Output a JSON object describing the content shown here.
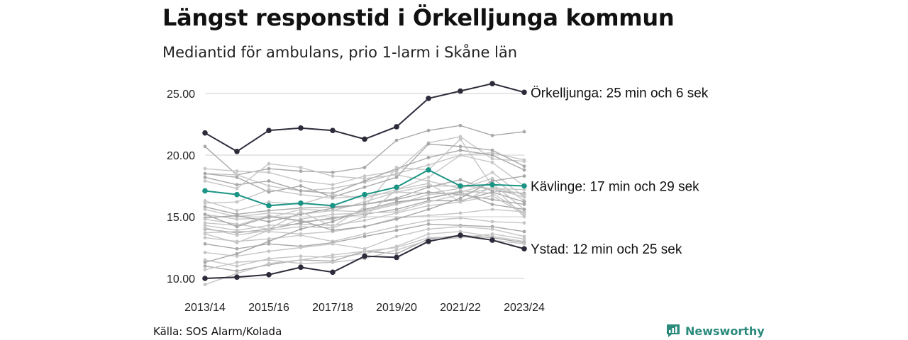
{
  "header": {
    "title": "Längst responstid i Örkelljunga kommun",
    "subtitle": "Mediantid för ambulans, prio 1-larm i Skåne län"
  },
  "footer": {
    "source": "Källa: SOS Alarm/Kolada",
    "brand": "Newsworthy"
  },
  "colors": {
    "highlight_dark": "#2c2b3a",
    "highlight_teal": "#1a9484",
    "background_light": "#c6c6c6",
    "background_mid": "#a8a8a8",
    "gridline": "#dedede",
    "brand": "#2b8a7c"
  },
  "chart_data": {
    "type": "line",
    "x": [
      "2013/14",
      "2014/15",
      "2015/16",
      "2016/17",
      "2017/18",
      "2018/19",
      "2019/20",
      "2020/21",
      "2021/22",
      "2022/23",
      "2023/24"
    ],
    "x_ticks": [
      "2013/14",
      "2015/16",
      "2017/18",
      "2019/20",
      "2021/22",
      "2023/24"
    ],
    "ylim": [
      9.3,
      26.2
    ],
    "y_ticks": [
      10,
      15,
      20,
      25
    ],
    "y_tick_labels": [
      "10.00",
      "15.00",
      "20.00",
      "25.00"
    ],
    "grid": true,
    "highlighted": [
      {
        "name": "Örkelljunga",
        "label": "Örkelljunga: 25 min och 6 sek",
        "color": "#2c2b3a",
        "values": [
          21.8,
          20.3,
          22.0,
          22.2,
          22.0,
          21.3,
          22.3,
          24.6,
          25.2,
          25.8,
          25.1
        ]
      },
      {
        "name": "Kävlinge",
        "label": "Kävlinge: 17 min och 29 sek",
        "color": "#1a9484",
        "values": [
          17.1,
          16.8,
          15.9,
          16.1,
          15.9,
          16.8,
          17.4,
          18.8,
          17.5,
          17.6,
          17.5
        ]
      },
      {
        "name": "Ystad",
        "label": "Ystad: 12 min och 25 sek",
        "color": "#2c2b3a",
        "values": [
          10.0,
          10.1,
          10.3,
          10.9,
          10.5,
          11.8,
          11.7,
          13.0,
          13.5,
          13.1,
          12.4
        ]
      }
    ],
    "background_series": [
      {
        "values": [
          20.7,
          18.4,
          18.9,
          18.7,
          18.6,
          19.0,
          21.2,
          22.0,
          22.4,
          21.6,
          21.9
        ]
      },
      {
        "values": [
          18.9,
          18.7,
          18.6,
          17.9,
          17.6,
          18.3,
          18.7,
          21.0,
          21.5,
          19.7,
          19.5
        ]
      },
      {
        "values": [
          18.5,
          18.4,
          17.5,
          17.1,
          17.3,
          17.8,
          18.5,
          19.2,
          20.0,
          20.2,
          19.6
        ]
      },
      {
        "values": [
          18.2,
          17.6,
          17.9,
          17.1,
          16.9,
          17.9,
          18.9,
          19.8,
          20.4,
          20.0,
          18.8
        ]
      },
      {
        "values": [
          17.9,
          17.3,
          19.3,
          19.0,
          18.3,
          18.1,
          18.4,
          17.9,
          17.3,
          18.6,
          16.6
        ]
      },
      {
        "values": [
          16.1,
          16.2,
          17.2,
          16.8,
          16.5,
          16.7,
          17.0,
          17.5,
          17.5,
          17.3,
          16.6
        ]
      },
      {
        "values": [
          15.8,
          15.2,
          15.5,
          15.7,
          15.8,
          16.0,
          16.5,
          17.4,
          18.0,
          17.1,
          16.9
        ]
      },
      {
        "values": [
          15.6,
          15.0,
          15.3,
          15.2,
          15.5,
          15.4,
          16.0,
          16.8,
          17.0,
          17.7,
          15.6
        ]
      },
      {
        "values": [
          15.2,
          14.8,
          14.9,
          15.6,
          15.5,
          16.2,
          17.0,
          16.9,
          17.3,
          18.1,
          16.3
        ]
      },
      {
        "values": [
          14.9,
          15.1,
          14.6,
          15.2,
          15.7,
          16.0,
          16.4,
          17.0,
          16.8,
          16.4,
          16.0
        ]
      },
      {
        "values": [
          14.5,
          14.3,
          15.1,
          14.6,
          14.8,
          15.5,
          16.1,
          16.5,
          17.1,
          16.9,
          15.3
        ]
      },
      {
        "values": [
          14.3,
          13.9,
          14.3,
          14.4,
          14.3,
          14.7,
          15.3,
          15.9,
          16.2,
          16.7,
          15.2
        ]
      },
      {
        "values": [
          14.0,
          13.7,
          14.0,
          14.5,
          14.9,
          15.2,
          15.6,
          16.3,
          16.3,
          17.0,
          16.2
        ]
      },
      {
        "values": [
          13.7,
          13.8,
          13.8,
          13.6,
          13.8,
          14.2,
          14.9,
          15.1,
          15.3,
          15.6,
          15.4
        ]
      },
      {
        "values": [
          13.3,
          13.0,
          13.2,
          13.5,
          13.0,
          13.6,
          14.2,
          14.7,
          14.9,
          14.6,
          14.5
        ]
      },
      {
        "values": [
          12.8,
          12.4,
          12.8,
          12.6,
          12.9,
          13.4,
          13.9,
          14.4,
          14.3,
          14.2,
          13.8
        ]
      },
      {
        "values": [
          12.1,
          11.8,
          12.2,
          12.5,
          12.8,
          12.4,
          13.4,
          14.0,
          14.2,
          14.0,
          13.4
        ]
      },
      {
        "values": [
          11.5,
          11.0,
          11.6,
          11.8,
          11.7,
          12.0,
          12.6,
          13.6,
          13.8,
          13.4,
          13.0
        ]
      },
      {
        "values": [
          11.0,
          10.6,
          11.1,
          11.5,
          11.4,
          12.2,
          12.0,
          13.2,
          13.5,
          13.3,
          12.9
        ]
      },
      {
        "values": [
          10.7,
          11.3,
          11.5,
          11.2,
          11.3,
          11.6,
          12.3,
          13.1,
          13.3,
          13.6,
          13.2
        ]
      },
      {
        "values": [
          9.5,
          10.4,
          11.2,
          11.5,
          11.9,
          12.2,
          12.5,
          13.3,
          13.4,
          13.1,
          12.8
        ]
      },
      {
        "values": [
          11.3,
          12.0,
          13.0,
          14.0,
          14.6,
          15.6,
          16.2,
          16.5,
          17.0,
          16.0,
          15.6
        ]
      },
      {
        "values": [
          13.6,
          12.9,
          13.9,
          14.2,
          14.1,
          15.0,
          17.2,
          18.2,
          20.0,
          19.4,
          17.5
        ]
      },
      {
        "values": [
          14.8,
          14.4,
          14.0,
          15.4,
          14.2,
          15.8,
          19.0,
          18.8,
          21.3,
          17.5,
          15.0
        ]
      },
      {
        "values": [
          18.5,
          18.2,
          17.0,
          17.5,
          16.6,
          17.4,
          18.2,
          20.9,
          20.7,
          20.4,
          19.1
        ]
      },
      {
        "values": [
          16.3,
          15.5,
          16.2,
          16.0,
          16.8,
          16.5,
          17.2,
          17.7,
          16.2,
          17.4,
          16.8
        ]
      },
      {
        "values": [
          14.1,
          13.5,
          13.9,
          14.8,
          15.2,
          15.3,
          15.4,
          16.2,
          16.8,
          17.3,
          17.2
        ]
      },
      {
        "values": [
          15.2,
          14.2,
          15.0,
          14.7,
          13.9,
          14.2,
          14.8,
          15.6,
          16.5,
          17.9,
          18.3
        ]
      }
    ]
  }
}
